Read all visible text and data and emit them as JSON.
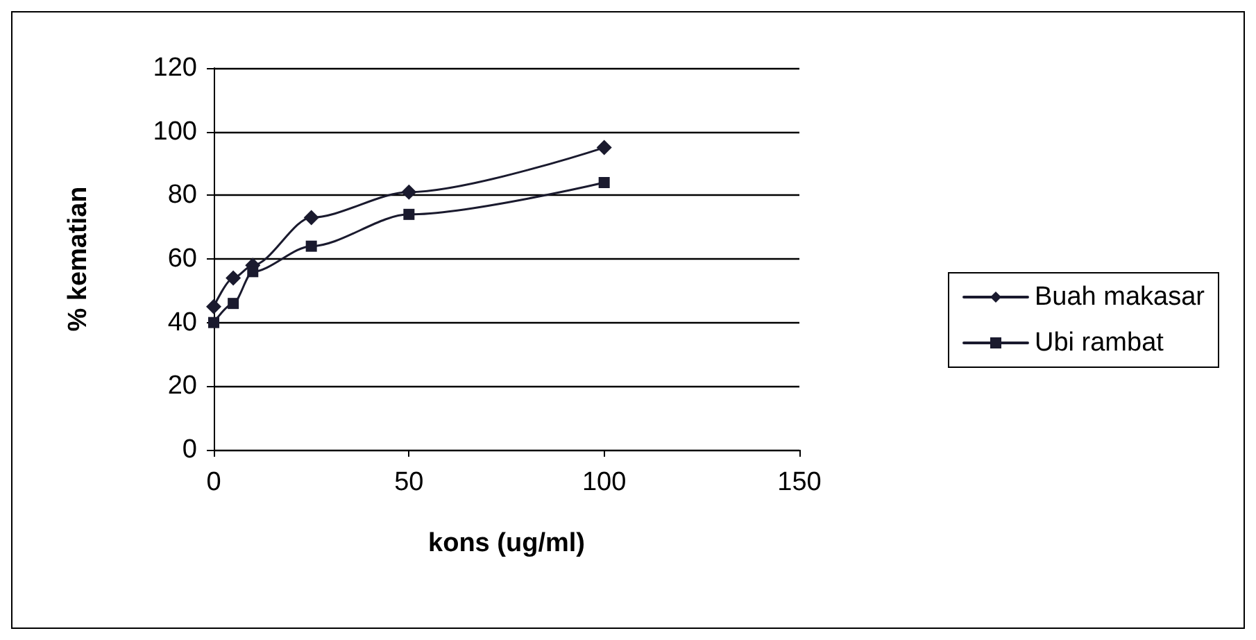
{
  "chart_data": {
    "type": "line",
    "xlabel": "kons (ug/ml)",
    "ylabel": "% kematian",
    "x": [
      0,
      5,
      10,
      25,
      50,
      100
    ],
    "series": [
      {
        "name": "Buah makasar",
        "color": "#1a1a2e",
        "marker": "diamond",
        "values": [
          45,
          54,
          58,
          73,
          81,
          95
        ]
      },
      {
        "name": "Ubi rambat",
        "color": "#1a1a2e",
        "marker": "square",
        "values": [
          40,
          46,
          56,
          64,
          74,
          84
        ]
      }
    ],
    "xlim": [
      0,
      150
    ],
    "xticks": [
      0,
      50,
      100,
      150
    ],
    "ylim": [
      0,
      120
    ],
    "yticks": [
      0,
      20,
      40,
      60,
      80,
      100,
      120
    ],
    "grid": "y",
    "legend": "right",
    "line_style": "solid"
  }
}
